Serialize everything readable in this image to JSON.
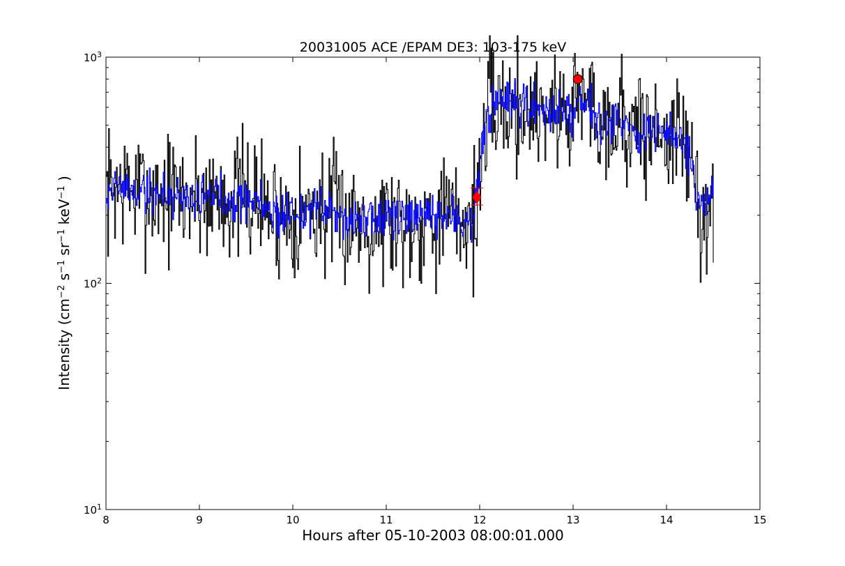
{
  "chart_data": {
    "type": "line",
    "title": "20031005 ACE /EPAM DE3: 103-175 keV",
    "xlabel": "Hours after 05-10-2003 08:00:01.000",
    "ylabel_parts": [
      "Intensity (cm",
      "−2",
      " s",
      "−1",
      " sr",
      "−1",
      " keV",
      "−1",
      " )"
    ],
    "xlim": [
      8,
      15
    ],
    "ylim": [
      10,
      1000
    ],
    "yscale": "log",
    "grid": false,
    "x_ticks": [
      {
        "value": 8,
        "label": "8"
      },
      {
        "value": 9,
        "label": "9"
      },
      {
        "value": 10,
        "label": "10"
      },
      {
        "value": 11,
        "label": "11"
      },
      {
        "value": 12,
        "label": "12"
      },
      {
        "value": 13,
        "label": "13"
      },
      {
        "value": 14,
        "label": "14"
      },
      {
        "value": 15,
        "label": "15"
      }
    ],
    "y_ticks": [
      {
        "value": 10,
        "base": "10",
        "exp": "1"
      },
      {
        "value": 100,
        "base": "10",
        "exp": "2"
      },
      {
        "value": 1000,
        "base": "10",
        "exp": "3"
      }
    ],
    "series_profile": [
      {
        "x": 8.0,
        "y": 250
      },
      {
        "x": 8.1,
        "y": 270
      },
      {
        "x": 8.3,
        "y": 255
      },
      {
        "x": 8.5,
        "y": 250
      },
      {
        "x": 8.7,
        "y": 245
      },
      {
        "x": 9.0,
        "y": 240
      },
      {
        "x": 9.2,
        "y": 245
      },
      {
        "x": 9.4,
        "y": 240
      },
      {
        "x": 9.6,
        "y": 235
      },
      {
        "x": 9.8,
        "y": 200
      },
      {
        "x": 10.0,
        "y": 205
      },
      {
        "x": 10.3,
        "y": 210
      },
      {
        "x": 10.6,
        "y": 195
      },
      {
        "x": 10.9,
        "y": 190
      },
      {
        "x": 11.0,
        "y": 200
      },
      {
        "x": 11.2,
        "y": 185
      },
      {
        "x": 11.4,
        "y": 195
      },
      {
        "x": 11.6,
        "y": 200
      },
      {
        "x": 11.8,
        "y": 190
      },
      {
        "x": 11.93,
        "y": 195
      },
      {
        "x": 11.97,
        "y": 240
      },
      {
        "x": 12.0,
        "y": 300
      },
      {
        "x": 12.03,
        "y": 420
      },
      {
        "x": 12.08,
        "y": 550
      },
      {
        "x": 12.15,
        "y": 620
      },
      {
        "x": 12.3,
        "y": 610
      },
      {
        "x": 12.5,
        "y": 580
      },
      {
        "x": 12.7,
        "y": 600
      },
      {
        "x": 12.9,
        "y": 560
      },
      {
        "x": 13.0,
        "y": 600
      },
      {
        "x": 13.05,
        "y": 680
      },
      {
        "x": 13.2,
        "y": 620
      },
      {
        "x": 13.3,
        "y": 520
      },
      {
        "x": 13.5,
        "y": 540
      },
      {
        "x": 13.7,
        "y": 450
      },
      {
        "x": 13.9,
        "y": 470
      },
      {
        "x": 14.1,
        "y": 440
      },
      {
        "x": 14.22,
        "y": 400
      },
      {
        "x": 14.28,
        "y": 320
      },
      {
        "x": 14.31,
        "y": 230
      },
      {
        "x": 14.38,
        "y": 210
      },
      {
        "x": 14.42,
        "y": 195
      },
      {
        "x": 14.45,
        "y": 215
      },
      {
        "x": 14.5,
        "y": 250
      }
    ],
    "series": [
      {
        "color": "#000000",
        "noise": 0.14,
        "seed": 7,
        "n": 700
      },
      {
        "color": "#0000ff",
        "noise": 0.05,
        "seed": 19,
        "n": 700
      }
    ],
    "markers": [
      {
        "x": 11.97,
        "y": 240,
        "shape": "diamond",
        "color": "#ff0000"
      },
      {
        "x": 13.05,
        "y": 800,
        "shape": "circle",
        "color": "#ff0000"
      }
    ],
    "error_bar": {
      "x": 11.97,
      "y_low": 222,
      "y_high": 264,
      "color": "#ff0000"
    }
  }
}
